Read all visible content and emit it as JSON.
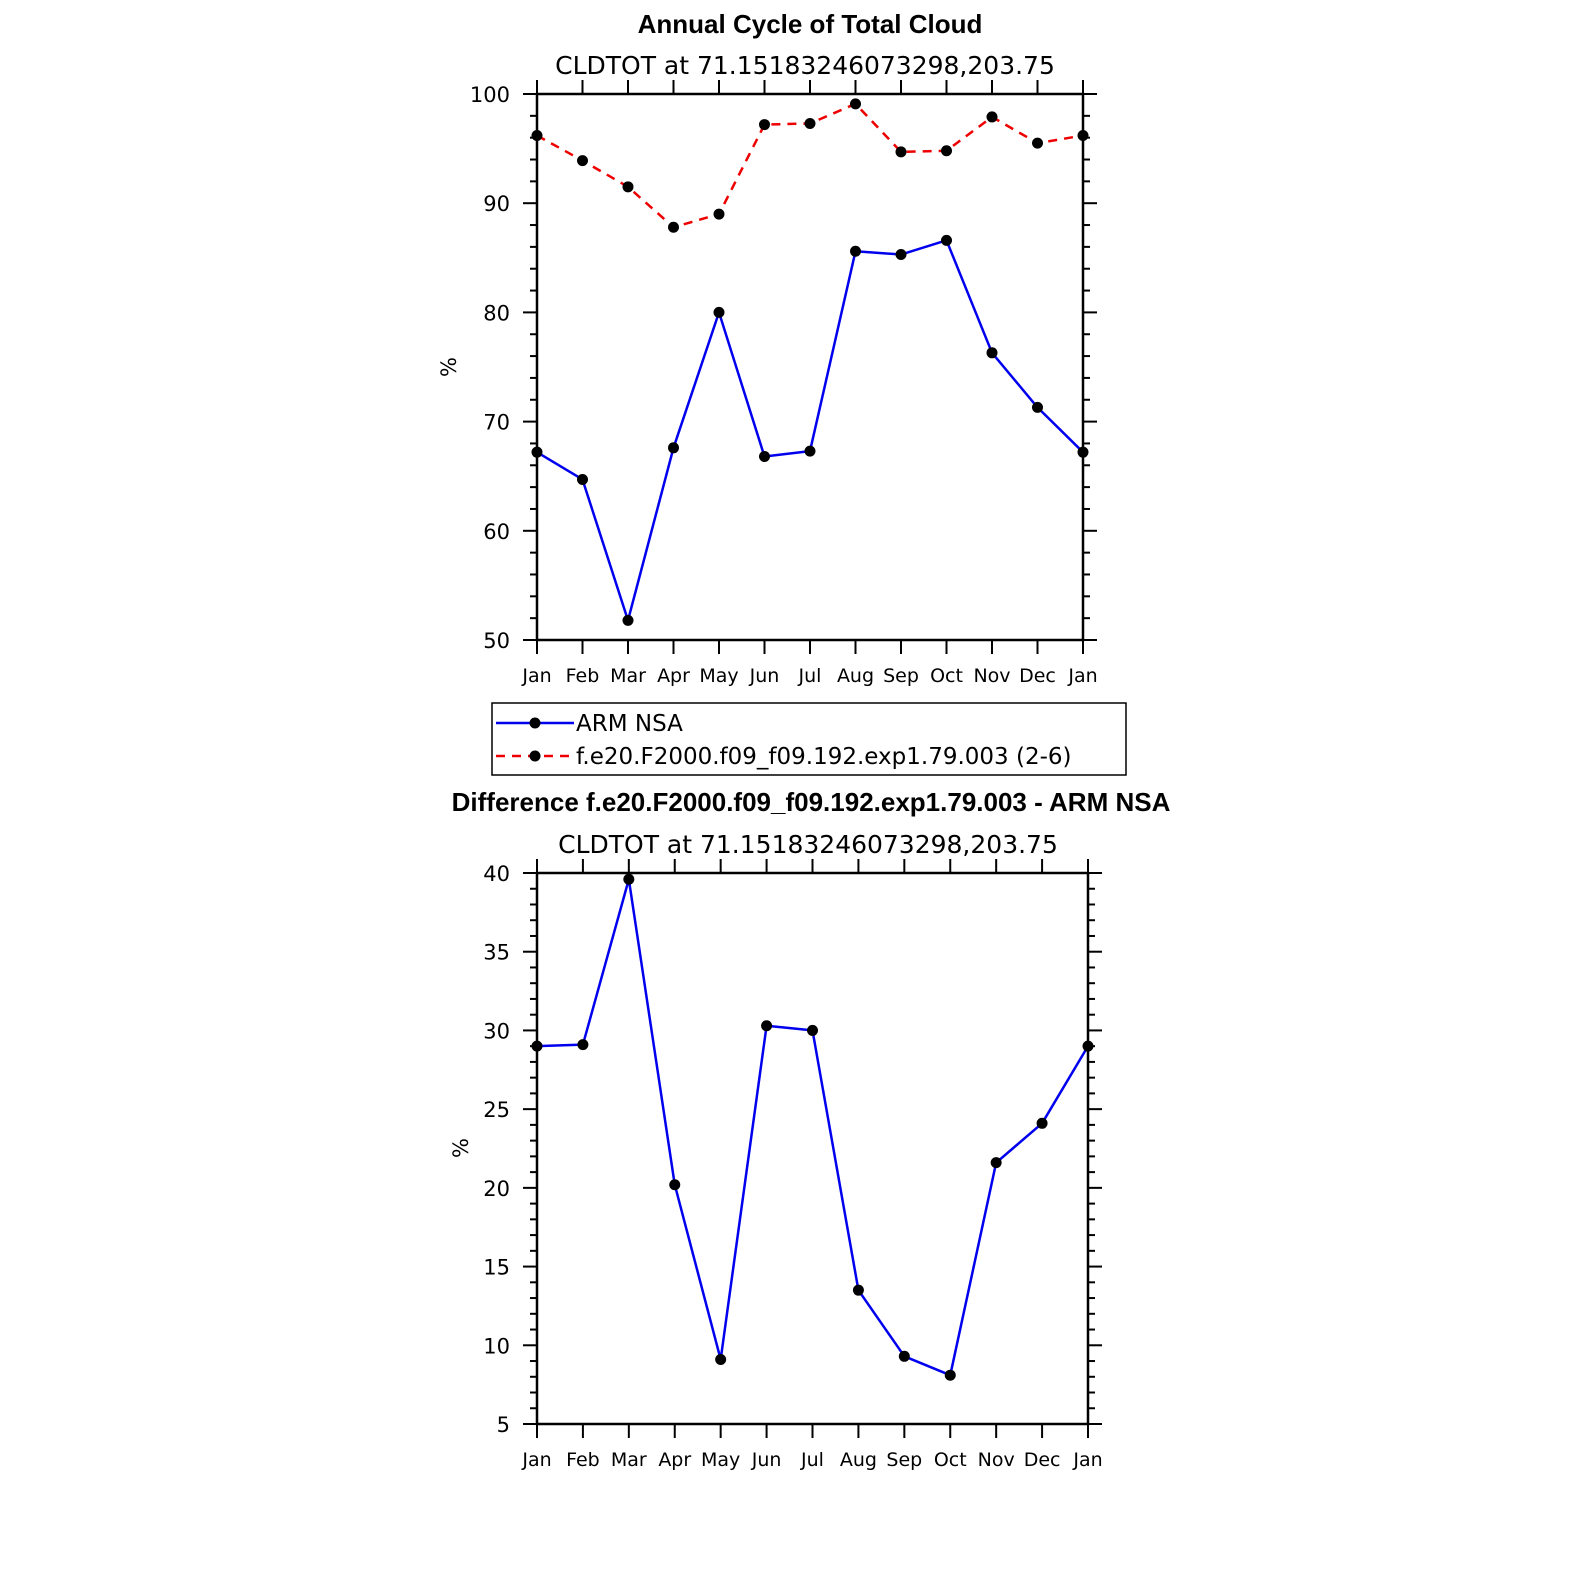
{
  "chart_data": [
    {
      "type": "line",
      "title": "Annual Cycle of Total Cloud",
      "subtitle": "CLDTOT at 71.15183246073298,203.75",
      "xlabel": "",
      "ylabel": "%",
      "ylim": [
        50,
        100
      ],
      "yticks": [
        50,
        60,
        70,
        80,
        90,
        100
      ],
      "categories": [
        "Jan",
        "Feb",
        "Mar",
        "Apr",
        "May",
        "Jun",
        "Jul",
        "Aug",
        "Sep",
        "Oct",
        "Nov",
        "Dec",
        "Jan"
      ],
      "series": [
        {
          "name": "ARM NSA",
          "color": "#0000ee",
          "dash": "solid",
          "values": [
            67.2,
            64.7,
            51.8,
            67.6,
            80.0,
            66.8,
            67.3,
            85.6,
            85.3,
            86.6,
            76.3,
            71.3,
            67.2
          ]
        },
        {
          "name": "f.e20.F2000.f09_f09.192.exp1.79.003 (2-6)",
          "color": "#ee0000",
          "dash": "dashed",
          "values": [
            96.2,
            93.9,
            91.5,
            87.8,
            89.0,
            97.2,
            97.3,
            99.1,
            94.7,
            94.8,
            97.9,
            95.5,
            96.2
          ]
        }
      ],
      "legend_placement": "bottom"
    },
    {
      "type": "line",
      "title": "Difference f.e20.F2000.f09_f09.192.exp1.79.003 - ARM NSA",
      "subtitle": "CLDTOT at 71.15183246073298,203.75",
      "xlabel": "",
      "ylabel": "%",
      "ylim": [
        5,
        40
      ],
      "yticks": [
        5,
        10,
        15,
        20,
        25,
        30,
        35,
        40
      ],
      "categories": [
        "Jan",
        "Feb",
        "Mar",
        "Apr",
        "May",
        "Jun",
        "Jul",
        "Aug",
        "Sep",
        "Oct",
        "Nov",
        "Dec",
        "Jan"
      ],
      "series": [
        {
          "color": "#0000ee",
          "dash": "solid",
          "values": [
            29.0,
            29.1,
            39.6,
            20.2,
            9.1,
            30.3,
            30.0,
            13.5,
            9.3,
            8.1,
            21.6,
            24.1,
            29.0
          ]
        }
      ]
    }
  ]
}
